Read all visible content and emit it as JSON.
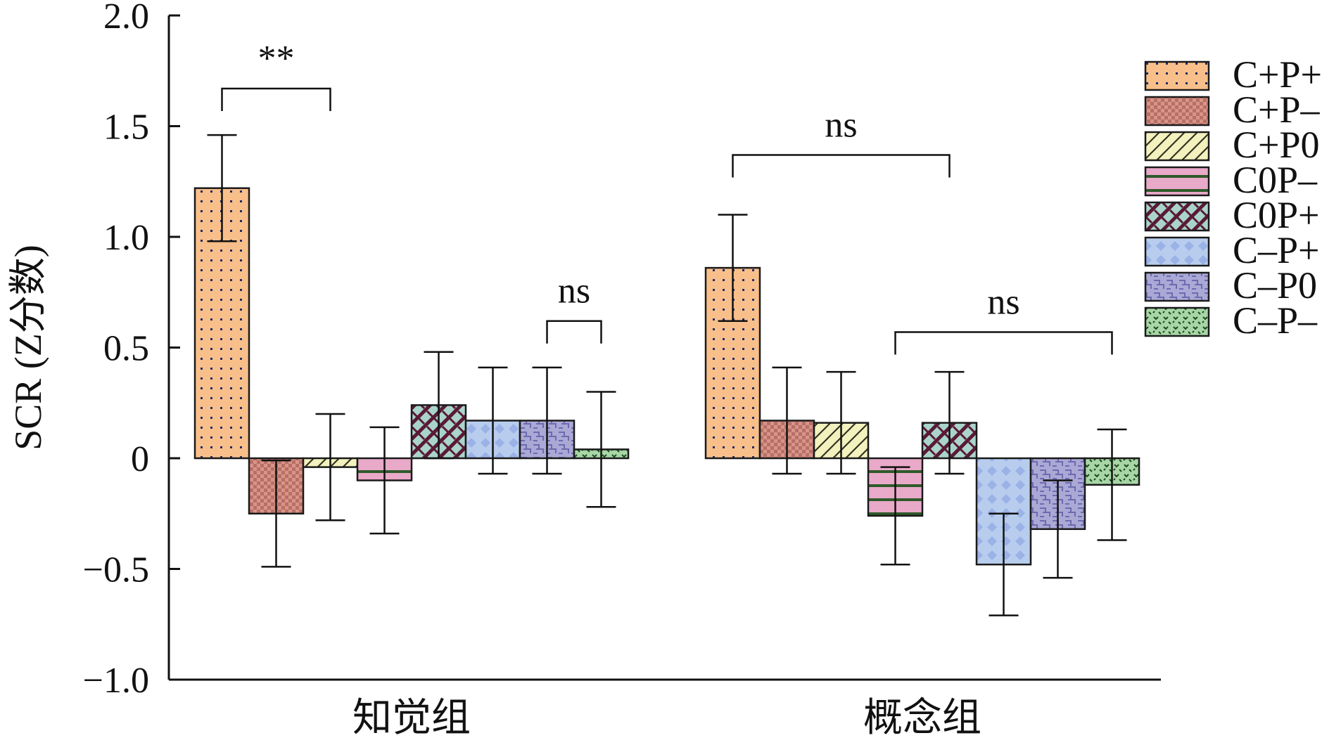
{
  "chart_data": {
    "type": "bar",
    "ylabel": "SCR (Z分数)",
    "ylim": [
      -1.0,
      2.0
    ],
    "yticks": [
      {
        "value": -1.0,
        "label": "−1.0"
      },
      {
        "value": -0.5,
        "label": "−0.5"
      },
      {
        "value": 0,
        "label": "0"
      },
      {
        "value": 0.5,
        "label": "0.5"
      },
      {
        "value": 1.0,
        "label": "1.0"
      },
      {
        "value": 1.5,
        "label": "1.5"
      },
      {
        "value": 2.0,
        "label": "2.0"
      }
    ],
    "categories": [
      "知觉组",
      "概念组"
    ],
    "series": [
      {
        "name": "C+P+",
        "color": "#f8bf8a",
        "pattern": "dots",
        "values": [
          1.22,
          0.86
        ],
        "errors": [
          0.24,
          0.24
        ]
      },
      {
        "name": "C+P–",
        "color": "#d89585",
        "pattern": "checker",
        "values": [
          -0.25,
          0.17
        ],
        "errors": [
          0.24,
          0.24
        ]
      },
      {
        "name": "C+P0",
        "color": "#f3f2be",
        "pattern": "diag",
        "values": [
          -0.04,
          0.16
        ],
        "errors": [
          0.24,
          0.23
        ]
      },
      {
        "name": "C0P–",
        "color": "#e9a9c9",
        "pattern": "hlines",
        "values": [
          -0.1,
          -0.26
        ],
        "errors": [
          0.24,
          0.22
        ]
      },
      {
        "name": "C0P+",
        "color": "#a9d4cc",
        "pattern": "zigzag",
        "values": [
          0.24,
          0.16
        ],
        "errors": [
          0.24,
          0.23
        ]
      },
      {
        "name": "C–P+",
        "color": "#b8cdee",
        "pattern": "diamonds",
        "values": [
          0.17,
          -0.48
        ],
        "errors": [
          0.24,
          0.23
        ]
      },
      {
        "name": "C–P0",
        "color": "#aaa9d6",
        "pattern": "maze",
        "values": [
          0.17,
          -0.32
        ],
        "errors": [
          0.24,
          0.22
        ]
      },
      {
        "name": "C–P–",
        "color": "#a8d6a6",
        "pattern": "speckle",
        "values": [
          0.04,
          -0.12
        ],
        "errors": [
          0.26,
          0.25
        ]
      }
    ],
    "significance": [
      {
        "group": 0,
        "from": 0,
        "to": 2,
        "label": "**",
        "level": 1.67
      },
      {
        "group": 0,
        "from": 6,
        "to": 7,
        "label": "ns",
        "level": 0.62
      },
      {
        "group": 1,
        "from": 0,
        "to": 4,
        "label": "ns",
        "level": 1.37
      },
      {
        "group": 1,
        "from": 3,
        "to": 7,
        "label": "ns",
        "level": 0.57
      }
    ],
    "legend": "right"
  }
}
